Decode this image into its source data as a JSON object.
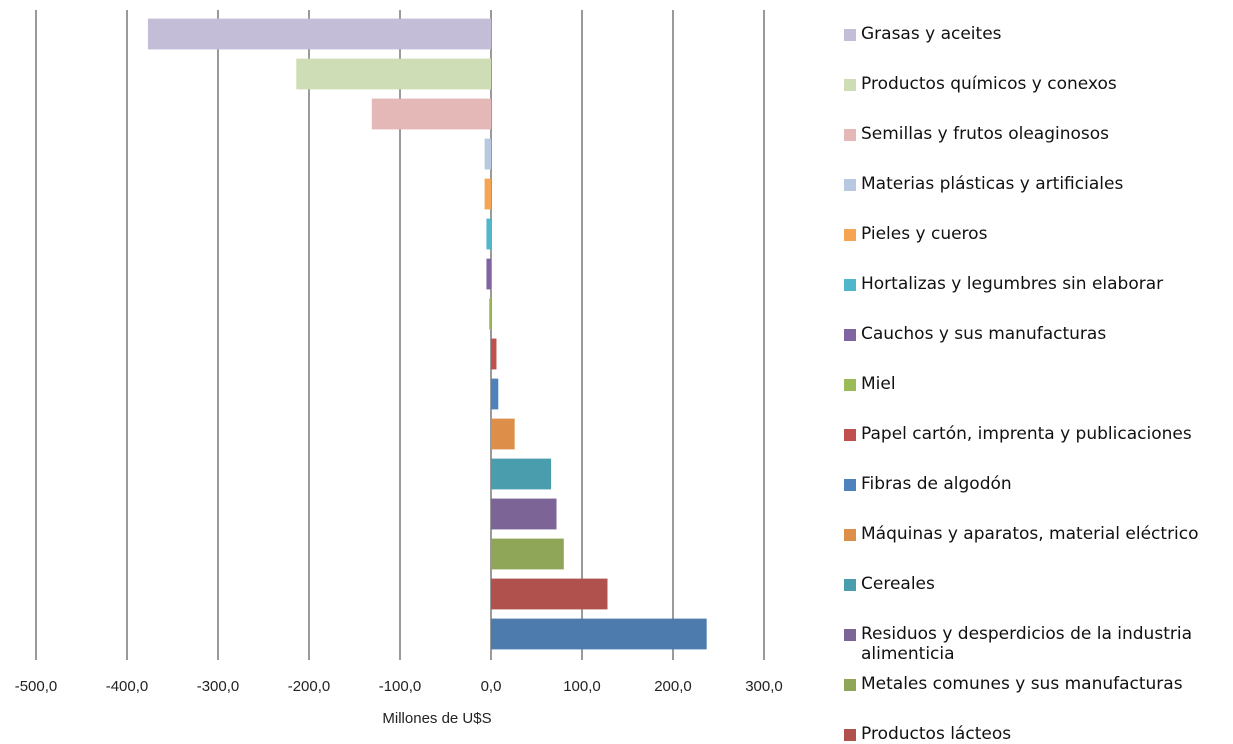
{
  "chart_data": {
    "type": "bar",
    "orientation": "horizontal",
    "xlabel": "Millones de U$S",
    "xlim": [
      -500,
      300
    ],
    "xticks": [
      -500,
      -400,
      -300,
      -200,
      -100,
      0,
      100,
      200,
      300
    ],
    "tick_labels": [
      "-500,0",
      "-400,0",
      "-300,0",
      "-200,0",
      "-100,0",
      "0,0",
      "100,0",
      "200,0",
      "300,0"
    ],
    "grid": "vertical",
    "legend": "right",
    "categories": [
      "Grasas y aceites",
      "Productos químicos y conexos",
      "Semillas y frutos oleaginosos",
      "Materias plásticas y artificiales",
      "Pieles y cueros",
      "Hortalizas y legumbres sin elaborar",
      "Cauchos y sus manufacturas",
      "Miel",
      "Papel cartón, imprenta y publicaciones",
      "Fibras de algodón",
      "Máquinas y aparatos, material eléctrico",
      "Cereales",
      "Residuos y desperdicios de la industria alimenticia",
      "Metales comunes y sus manufacturas",
      "Productos lácteos",
      ""
    ],
    "values": [
      -377,
      -214,
      -131,
      -7,
      -7,
      -5,
      -5,
      -2,
      6,
      8,
      26,
      66,
      72,
      80,
      128,
      237
    ],
    "colors": [
      "#c4bdd8",
      "#cfddb6",
      "#e4b8b6",
      "#b8c8e0",
      "#f5a452",
      "#4fb6cc",
      "#8064a2",
      "#9bbb59",
      "#c0504d",
      "#4f81bd",
      "#dd8f4a",
      "#4a9dac",
      "#7c6497",
      "#8fa658",
      "#b0514d",
      "#4e7bae"
    ]
  }
}
